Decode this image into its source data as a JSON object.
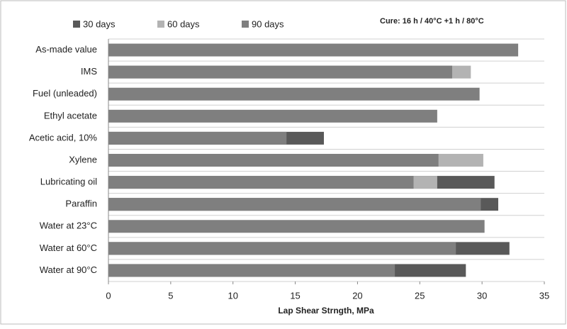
{
  "chart_data": {
    "type": "bar",
    "orientation": "horizontal",
    "overlap": true,
    "annotation": "Cure: 16 h / 40°C +1 h / 80°C",
    "x_label": "Lap Shear Strngth, MPa",
    "categories": [
      "As-made value",
      "IMS",
      "Fuel (unleaded)",
      "Ethyl acetate",
      "Acetic acid, 10%",
      "Xylene",
      "Lubricating oil",
      "Paraffin",
      "Water at 23°C",
      "Water at 60°C",
      "Water at 90°C"
    ],
    "series": [
      {
        "name": "30 days",
        "color": "#595959",
        "values": [
          null,
          null,
          null,
          null,
          17.3,
          null,
          31.0,
          31.3,
          null,
          32.2,
          28.7
        ]
      },
      {
        "name": "60 days",
        "color": "#b3b3b3",
        "values": [
          null,
          29.1,
          null,
          null,
          null,
          30.1,
          26.4,
          null,
          null,
          null,
          null
        ]
      },
      {
        "name": "90 days",
        "color": "#7f7f7f",
        "values": [
          32.9,
          27.6,
          29.8,
          26.4,
          14.3,
          26.5,
          24.5,
          29.9,
          30.2,
          27.9,
          23.0
        ]
      }
    ],
    "xlim": [
      0,
      35
    ],
    "xticks": [
      0,
      5,
      10,
      15,
      20,
      25,
      30,
      35
    ],
    "grid": true
  }
}
